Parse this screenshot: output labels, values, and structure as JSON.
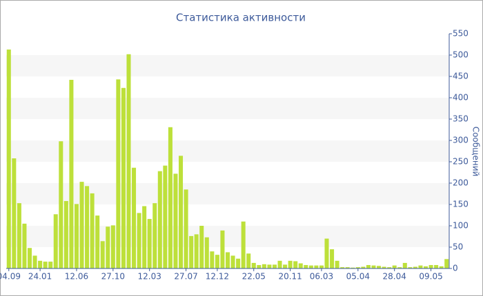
{
  "chart_data": {
    "type": "bar",
    "title": "Статистика активности",
    "y_label": "Сообщений",
    "categories": [
      "04.09",
      null,
      null,
      null,
      null,
      null,
      "24.01",
      null,
      null,
      null,
      null,
      null,
      null,
      "12.06",
      null,
      null,
      null,
      null,
      null,
      null,
      "27.10",
      null,
      null,
      null,
      null,
      null,
      null,
      "12.03",
      null,
      null,
      null,
      null,
      null,
      null,
      "27.07",
      null,
      null,
      null,
      null,
      null,
      "12.12",
      null,
      null,
      null,
      null,
      null,
      null,
      "22.05",
      null,
      null,
      null,
      null,
      null,
      null,
      "20.11",
      null,
      null,
      null,
      null,
      null,
      "06.03",
      null,
      null,
      null,
      null,
      null,
      null,
      "05.04",
      null,
      null,
      null,
      null,
      null,
      null,
      "28.04",
      null,
      null,
      null,
      null,
      null,
      null,
      "09.05",
      null,
      null,
      null
    ],
    "values": [
      513,
      258,
      153,
      105,
      48,
      30,
      18,
      16,
      16,
      127,
      298,
      158,
      442,
      151,
      203,
      193,
      176,
      124,
      64,
      98,
      101,
      443,
      423,
      502,
      236,
      130,
      146,
      116,
      153,
      228,
      241,
      331,
      222,
      264,
      185,
      76,
      80,
      100,
      73,
      40,
      32,
      89,
      38,
      30,
      23,
      110,
      35,
      13,
      8,
      10,
      9,
      9,
      18,
      9,
      18,
      17,
      12,
      8,
      7,
      7,
      7,
      70,
      45,
      18,
      3,
      3,
      2,
      3,
      4,
      8,
      7,
      6,
      4,
      3,
      7,
      3,
      13,
      3,
      4,
      7,
      5,
      8,
      8,
      5,
      22
    ],
    "color": "#bde03a",
    "ylim": [
      0,
      550
    ],
    "yticks": [
      0,
      50,
      100,
      150,
      200,
      250,
      300,
      350,
      400,
      450,
      500,
      550
    ],
    "grid": "bands"
  }
}
